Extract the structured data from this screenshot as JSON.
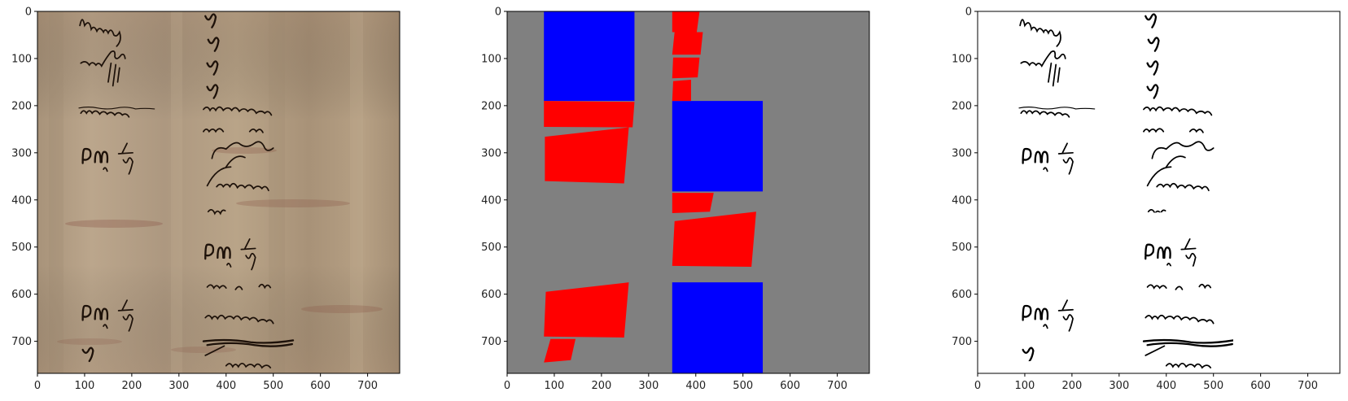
{
  "colors": {
    "background_gray": "#808080",
    "table_blue": "#0000ff",
    "text_red": "#ff0000",
    "parchment": "#b49e80",
    "ink": "#1e120a"
  },
  "chart_data": [
    {
      "type": "image",
      "panel": "original-scan",
      "xlim": [
        0,
        768
      ],
      "ylim": [
        768,
        0
      ],
      "xticks": [
        0,
        100,
        200,
        300,
        400,
        500,
        600,
        700
      ],
      "yticks": [
        0,
        100,
        200,
        300,
        400,
        500,
        600,
        700
      ]
    },
    {
      "type": "image",
      "panel": "segmentation-mask",
      "xlim": [
        0,
        768
      ],
      "ylim": [
        768,
        0
      ],
      "xticks": [
        0,
        100,
        200,
        300,
        400,
        500,
        600,
        700
      ],
      "yticks": [
        0,
        100,
        200,
        300,
        400,
        500,
        600,
        700
      ],
      "regions": [
        {
          "class": "table",
          "color": "blue",
          "points": [
            [
              78,
              0
            ],
            [
              270,
              0
            ],
            [
              270,
              190
            ],
            [
              78,
              190
            ]
          ]
        },
        {
          "class": "table",
          "color": "blue",
          "points": [
            [
              350,
              190
            ],
            [
              542,
              190
            ],
            [
              542,
              382
            ],
            [
              350,
              382
            ]
          ]
        },
        {
          "class": "table",
          "color": "blue",
          "points": [
            [
              350,
              575
            ],
            [
              542,
              575
            ],
            [
              542,
              768
            ],
            [
              350,
              768
            ]
          ]
        },
        {
          "class": "text",
          "color": "red",
          "points": [
            [
              350,
              0
            ],
            [
              408,
              0
            ],
            [
              402,
              44
            ],
            [
              350,
              44
            ]
          ]
        },
        {
          "class": "text",
          "color": "red",
          "points": [
            [
              355,
              44
            ],
            [
              415,
              44
            ],
            [
              410,
              92
            ],
            [
              350,
              92
            ]
          ]
        },
        {
          "class": "text",
          "color": "red",
          "points": [
            [
              352,
              98
            ],
            [
              408,
              98
            ],
            [
              404,
              140
            ],
            [
              350,
              142
            ]
          ]
        },
        {
          "class": "text",
          "color": "red",
          "points": [
            [
              352,
              148
            ],
            [
              390,
              145
            ],
            [
              390,
              190
            ],
            [
              350,
              190
            ]
          ]
        },
        {
          "class": "text",
          "color": "red",
          "points": [
            [
              78,
              190
            ],
            [
              270,
              192
            ],
            [
              266,
              246
            ],
            [
              78,
              245
            ]
          ]
        },
        {
          "class": "text",
          "color": "red",
          "points": [
            [
              80,
              266
            ],
            [
              258,
              246
            ],
            [
              248,
              365
            ],
            [
              80,
              360
            ]
          ]
        },
        {
          "class": "text",
          "color": "red",
          "points": [
            [
              350,
              385
            ],
            [
              438,
              385
            ],
            [
              430,
              425
            ],
            [
              350,
              428
            ]
          ]
        },
        {
          "class": "text",
          "color": "red",
          "points": [
            [
              355,
              445
            ],
            [
              528,
              425
            ],
            [
              518,
              542
            ],
            [
              350,
              540
            ]
          ]
        },
        {
          "class": "text",
          "color": "red",
          "points": [
            [
              82,
              595
            ],
            [
              258,
              575
            ],
            [
              248,
              692
            ],
            [
              78,
              690
            ]
          ]
        },
        {
          "class": "text",
          "color": "red",
          "points": [
            [
              92,
              695
            ],
            [
              145,
              695
            ],
            [
              135,
              740
            ],
            [
              78,
              745
            ]
          ]
        }
      ]
    },
    {
      "type": "image",
      "panel": "binarized-text",
      "xlim": [
        0,
        768
      ],
      "ylim": [
        768,
        0
      ],
      "xticks": [
        0,
        100,
        200,
        300,
        400,
        500,
        600,
        700
      ],
      "yticks": [
        0,
        100,
        200,
        300,
        400,
        500,
        600,
        700
      ]
    }
  ]
}
